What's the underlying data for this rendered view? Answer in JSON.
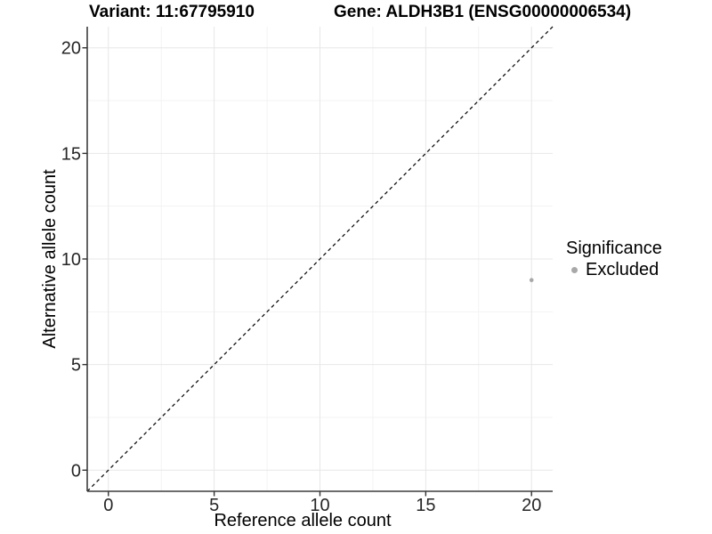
{
  "chart_data": {
    "type": "scatter",
    "titles": [
      "Variant: 11:67795910",
      "Gene: ALDH3B1 (ENSG00000006534)"
    ],
    "xlabel": "Reference allele count",
    "ylabel": "Alternative allele count",
    "xlim": [
      -1,
      21
    ],
    "ylim": [
      -1,
      21
    ],
    "x_ticks": [
      0,
      5,
      10,
      15,
      20
    ],
    "y_ticks": [
      0,
      5,
      10,
      15,
      20
    ],
    "x_minor_ticks": [
      2.5,
      7.5,
      12.5,
      17.5
    ],
    "y_minor_ticks": [
      2.5,
      7.5,
      12.5,
      17.5
    ],
    "grid": true,
    "identity_line": {
      "style": "dashed",
      "from": [
        -1,
        -1
      ],
      "to": [
        21,
        21
      ]
    },
    "series": [
      {
        "name": "Excluded",
        "points": [
          {
            "x": 20,
            "y": 9
          }
        ]
      }
    ],
    "legend": {
      "title": "Significance",
      "position": "right",
      "items": [
        {
          "label": "Excluded",
          "marker": "circle",
          "color": "#a8a8a8"
        }
      ]
    }
  },
  "colors": {
    "background": "#ffffff",
    "grid_major": "#e7e7e7",
    "grid_minor": "#f3f3f3",
    "axis_line": "#3d3d3d",
    "tick_mark": "#333333",
    "identity_line": "#111111",
    "point": "#a8a8a8"
  }
}
